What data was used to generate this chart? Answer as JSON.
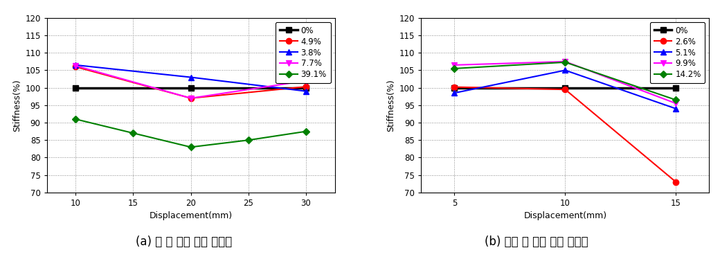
{
  "chart_a": {
    "title_caption": "(a) 휘 보 강성 비교 그래프",
    "xlabel": "Displacement(mm)",
    "ylabel": "Stiffness(%)",
    "xlim": [
      7.5,
      32.5
    ],
    "ylim": [
      70,
      120
    ],
    "yticks": [
      70,
      75,
      80,
      85,
      90,
      95,
      100,
      105,
      110,
      115,
      120
    ],
    "xticks": [
      10,
      15,
      20,
      25,
      30
    ],
    "series": [
      {
        "label": "0%",
        "color": "#000000",
        "marker": "s",
        "lw": 2.5,
        "ms": 6,
        "x": [
          10,
          20,
          30
        ],
        "y": [
          100,
          100,
          100
        ]
      },
      {
        "label": "4.9%",
        "color": "#ff0000",
        "marker": "o",
        "lw": 1.5,
        "ms": 6,
        "x": [
          10,
          20,
          30
        ],
        "y": [
          106.0,
          97.0,
          100.3
        ]
      },
      {
        "label": "3.8%",
        "color": "#0000ff",
        "marker": "^",
        "lw": 1.5,
        "ms": 6,
        "x": [
          10,
          20,
          30
        ],
        "y": [
          106.5,
          103.0,
          99.0
        ]
      },
      {
        "label": "7.7%",
        "color": "#ff00ff",
        "marker": "v",
        "lw": 1.5,
        "ms": 6,
        "x": [
          10,
          20,
          30
        ],
        "y": [
          106.3,
          97.0,
          102.0
        ]
      },
      {
        "label": "39.1%",
        "color": "#008000",
        "marker": "D",
        "lw": 1.5,
        "ms": 5,
        "x": [
          10,
          15,
          20,
          25,
          30
        ],
        "y": [
          91.0,
          87.0,
          83.0,
          85.0,
          87.5
        ]
      }
    ]
  },
  "chart_b": {
    "title_caption": "(b) 전단 보 강성 비교 그래프",
    "xlabel": "Displacement(mm)",
    "ylabel": "Stiffness(%)",
    "xlim": [
      3.5,
      16.5
    ],
    "ylim": [
      70,
      120
    ],
    "yticks": [
      70,
      75,
      80,
      85,
      90,
      95,
      100,
      105,
      110,
      115,
      120
    ],
    "xticks": [
      5,
      10,
      15
    ],
    "series": [
      {
        "label": "0%",
        "color": "#000000",
        "marker": "s",
        "lw": 2.5,
        "ms": 6,
        "x": [
          5,
          10,
          15
        ],
        "y": [
          100,
          100,
          100
        ]
      },
      {
        "label": "2.6%",
        "color": "#ff0000",
        "marker": "o",
        "lw": 1.5,
        "ms": 6,
        "x": [
          5,
          10,
          15
        ],
        "y": [
          100.2,
          99.5,
          73.0
        ]
      },
      {
        "label": "5.1%",
        "color": "#0000ff",
        "marker": "^",
        "lw": 1.5,
        "ms": 6,
        "x": [
          5,
          10,
          15
        ],
        "y": [
          98.5,
          105.0,
          94.0
        ]
      },
      {
        "label": "9.9%",
        "color": "#ff00ff",
        "marker": "v",
        "lw": 1.5,
        "ms": 6,
        "x": [
          5,
          10,
          15
        ],
        "y": [
          106.5,
          107.5,
          95.5
        ]
      },
      {
        "label": "14.2%",
        "color": "#008000",
        "marker": "D",
        "lw": 1.5,
        "ms": 5,
        "x": [
          5,
          10,
          15
        ],
        "y": [
          105.5,
          107.3,
          96.5
        ]
      }
    ]
  },
  "background_color": "#ffffff",
  "grid_color": "#888888",
  "font_size_axis_label": 9,
  "font_size_tick": 8.5,
  "font_size_legend": 8.5,
  "font_size_caption": 12
}
